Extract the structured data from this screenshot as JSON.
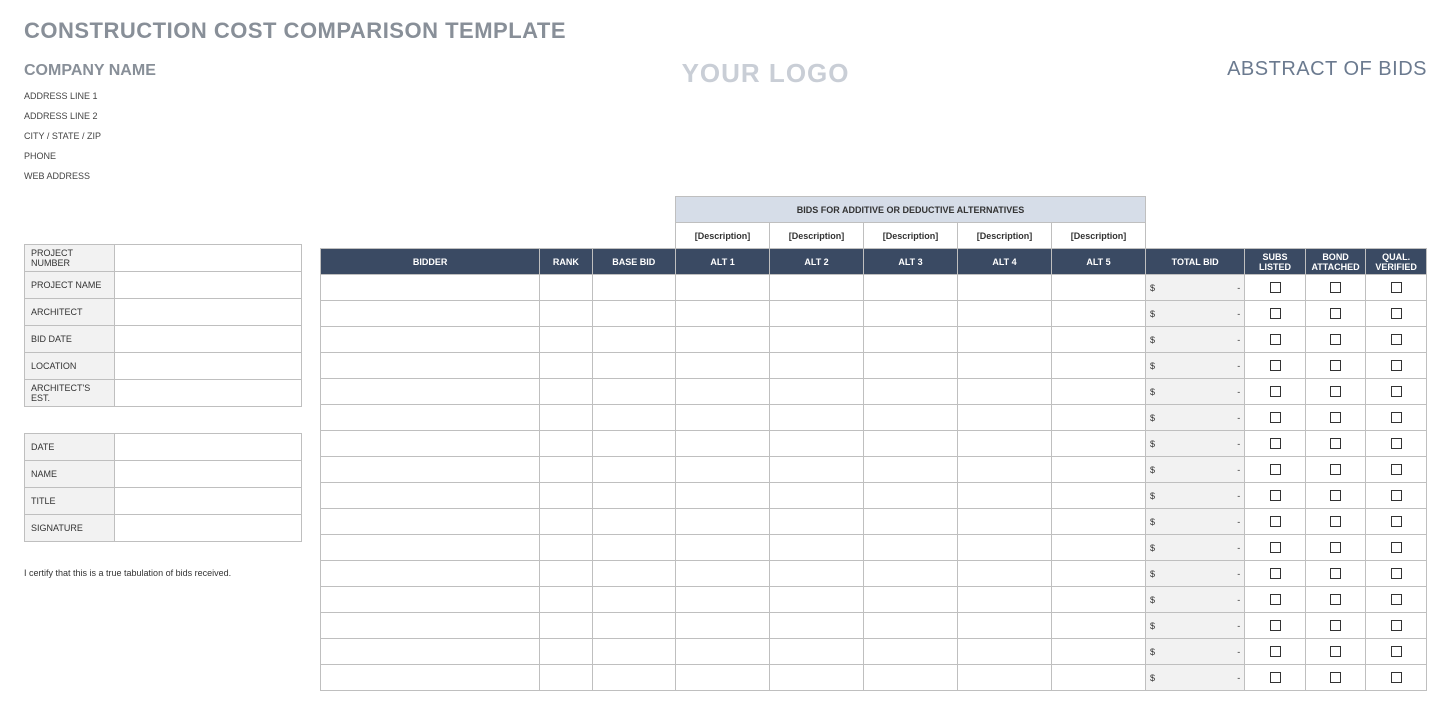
{
  "title": "CONSTRUCTION COST COMPARISON TEMPLATE",
  "company": {
    "name": "COMPANY NAME",
    "address1": "ADDRESS LINE 1",
    "address2": "ADDRESS LINE 2",
    "city": "CITY / STATE / ZIP",
    "phone": "PHONE",
    "web": "WEB ADDRESS"
  },
  "logo_text": "YOUR LOGO",
  "abstract_header": "ABSTRACT OF BIDS",
  "project_info": {
    "rows": [
      {
        "label": "PROJECT NUMBER",
        "value": ""
      },
      {
        "label": "PROJECT NAME",
        "value": ""
      },
      {
        "label": "ARCHITECT",
        "value": ""
      },
      {
        "label": "BID DATE",
        "value": ""
      },
      {
        "label": "LOCATION",
        "value": ""
      },
      {
        "label": "ARCHITECT'S EST.",
        "value": ""
      }
    ]
  },
  "signoff": {
    "rows": [
      {
        "label": "DATE",
        "value": ""
      },
      {
        "label": "NAME",
        "value": ""
      },
      {
        "label": "TITLE",
        "value": ""
      },
      {
        "label": "SIGNATURE",
        "value": ""
      }
    ]
  },
  "cert_text": "I certify that this is a true tabulation of bids received.",
  "bid_headers": {
    "alt_section_title": "BIDS FOR ADDITIVE OR DEDUCTIVE ALTERNATIVES",
    "desc_placeholder": "[Description]",
    "bidder": "BIDDER",
    "rank": "RANK",
    "base_bid": "BASE BID",
    "alts": [
      "ALT 1",
      "ALT 2",
      "ALT 3",
      "ALT 4",
      "ALT 5"
    ],
    "total_bid": "TOTAL BID",
    "subs_listed": "SUBS LISTED",
    "bond_attached": "BOND ATTACHED",
    "qual_verified": "QUAL. VERIFIED"
  },
  "bid_rows_count": 16,
  "total_display": {
    "dollar": "$",
    "dash": "-"
  },
  "colors": {
    "title_gray": "#888f98",
    "logo_gray": "#c9ced6",
    "abstract_blue": "#6b7a8f",
    "dark_header": "#3a4a63",
    "light_header": "#d6dde8",
    "cell_gray": "#f2f2f2",
    "border": "#bfbfbf"
  }
}
